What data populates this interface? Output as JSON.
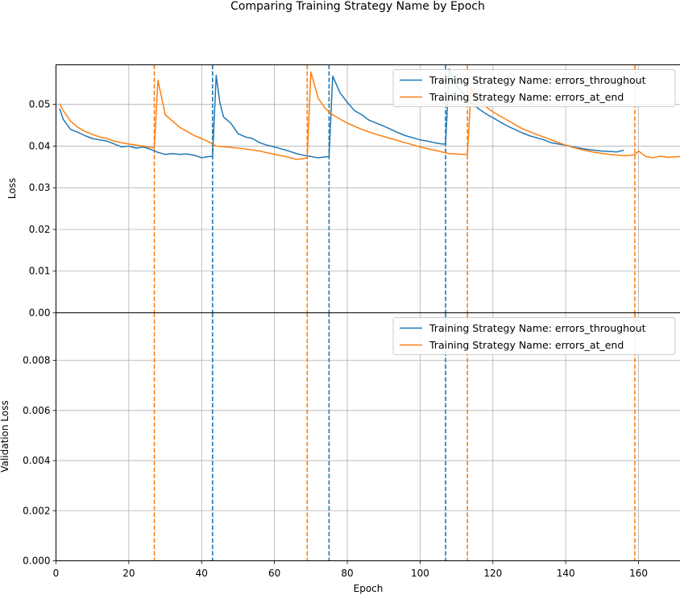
{
  "chart_data": {
    "title": "Comparing Training Strategy Name by Epoch",
    "xlabel": "Epoch",
    "xlim": [
      0,
      171.5
    ],
    "xticks": [
      0,
      20,
      40,
      60,
      80,
      100,
      120,
      140,
      160
    ],
    "grid": true,
    "series_colors": [
      "#1f77b4",
      "#ff7f0e"
    ],
    "vlines": [
      {
        "x": 27,
        "color": "#ff7f0e"
      },
      {
        "x": 43,
        "color": "#1f77b4"
      },
      {
        "x": 69,
        "color": "#ff7f0e"
      },
      {
        "x": 75,
        "color": "#1f77b4"
      },
      {
        "x": 107,
        "color": "#1f77b4"
      },
      {
        "x": 113,
        "color": "#ff7f0e"
      },
      {
        "x": 159,
        "color": "#ff7f0e"
      }
    ],
    "panels": [
      {
        "type": "line",
        "ylabel": "Loss",
        "ylim": [
          0,
          0.0595
        ],
        "yticks": [
          "0.00",
          "0.01",
          "0.02",
          "0.03",
          "0.04",
          "0.05"
        ],
        "ytick_values": [
          0,
          0.01,
          0.02,
          0.03,
          0.04,
          0.05
        ],
        "legend_position": "top-right",
        "series": [
          {
            "name": "Training Strategy Name: errors_throughout",
            "x": [
              1,
              2,
              4,
              6,
              8,
              10,
              12,
              14,
              16,
              18,
              20,
              22,
              24,
              26,
              28,
              30,
              32,
              34,
              36,
              38,
              40,
              42,
              43,
              44,
              45,
              46,
              48,
              50,
              52,
              54,
              56,
              58,
              60,
              62,
              64,
              66,
              68,
              70,
              72,
              74,
              75,
              76,
              77,
              78,
              80,
              82,
              84,
              86,
              88,
              90,
              92,
              94,
              96,
              98,
              100,
              102,
              104,
              106,
              107,
              108,
              109,
              110,
              112,
              114,
              116,
              118,
              120,
              122,
              124,
              126,
              128,
              130,
              132,
              134,
              136,
              138,
              140,
              142,
              144,
              146,
              148,
              150,
              152,
              154,
              156
            ],
            "y": [
              0.049,
              0.0464,
              0.044,
              0.0433,
              0.0425,
              0.0418,
              0.0415,
              0.0412,
              0.0405,
              0.0398,
              0.04,
              0.0395,
              0.0398,
              0.0392,
              0.0385,
              0.038,
              0.0382,
              0.038,
              0.0381,
              0.0378,
              0.0372,
              0.0375,
              0.0375,
              0.057,
              0.0505,
              0.047,
              0.0455,
              0.043,
              0.0422,
              0.0418,
              0.0408,
              0.0402,
              0.0398,
              0.0393,
              0.0388,
              0.0382,
              0.0378,
              0.0375,
              0.0372,
              0.0374,
              0.0375,
              0.0568,
              0.0548,
              0.0528,
              0.0505,
              0.0485,
              0.0475,
              0.0462,
              0.0455,
              0.0448,
              0.044,
              0.0432,
              0.0425,
              0.042,
              0.0415,
              0.0412,
              0.0408,
              0.0405,
              0.0405,
              0.0585,
              0.0565,
              0.0545,
              0.0525,
              0.0505,
              0.049,
              0.0478,
              0.0468,
              0.0458,
              0.0448,
              0.044,
              0.0432,
              0.0425,
              0.042,
              0.0415,
              0.0408,
              0.0405,
              0.0402,
              0.0398,
              0.0395,
              0.0392,
              0.039,
              0.0388,
              0.0387,
              0.0386,
              0.039
            ]
          },
          {
            "name": "Training Strategy Name: errors_at_end",
            "x": [
              1,
              2,
              4,
              6,
              8,
              10,
              12,
              14,
              16,
              18,
              20,
              22,
              24,
              26,
              27,
              28,
              30,
              32,
              34,
              36,
              38,
              40,
              42,
              44,
              48,
              52,
              56,
              60,
              64,
              66,
              68,
              69,
              70,
              72,
              74,
              76,
              80,
              84,
              88,
              92,
              96,
              100,
              104,
              108,
              112,
              113,
              114,
              116,
              118,
              120,
              124,
              128,
              132,
              136,
              140,
              144,
              148,
              152,
              156,
              158,
              159,
              160,
              162,
              164,
              166,
              168,
              170,
              171.5
            ],
            "y": [
              0.0502,
              0.0485,
              0.046,
              0.0445,
              0.0435,
              0.0428,
              0.0422,
              0.0418,
              0.0412,
              0.0408,
              0.0405,
              0.0402,
              0.04,
              0.0397,
              0.0396,
              0.0558,
              0.0475,
              0.046,
              0.0445,
              0.0435,
              0.0425,
              0.0418,
              0.041,
              0.04,
              0.0397,
              0.0393,
              0.0388,
              0.038,
              0.0373,
              0.0368,
              0.037,
              0.0372,
              0.0578,
              0.0515,
              0.049,
              0.0475,
              0.0455,
              0.044,
              0.0428,
              0.0418,
              0.0408,
              0.0398,
              0.039,
              0.0382,
              0.038,
              0.038,
              0.0538,
              0.051,
              0.0495,
              0.0482,
              0.0462,
              0.0442,
              0.0428,
              0.0415,
              0.0402,
              0.0392,
              0.0385,
              0.038,
              0.0377,
              0.0378,
              0.038,
              0.0388,
              0.0375,
              0.0372,
              0.0376,
              0.0373,
              0.0374,
              0.0375
            ]
          }
        ]
      },
      {
        "type": "line",
        "ylabel": "Validation Loss",
        "ylim": [
          0,
          0.0099
        ],
        "yticks": [
          "0.000",
          "0.002",
          "0.004",
          "0.006",
          "0.008"
        ],
        "ytick_values": [
          0,
          0.002,
          0.004,
          0.006,
          0.008
        ],
        "legend_position": "top-right",
        "series": [
          {
            "name": "Training Strategy Name: errors_throughout",
            "x": [],
            "y": []
          },
          {
            "name": "Training Strategy Name: errors_at_end",
            "x": [],
            "y": []
          }
        ]
      }
    ]
  }
}
